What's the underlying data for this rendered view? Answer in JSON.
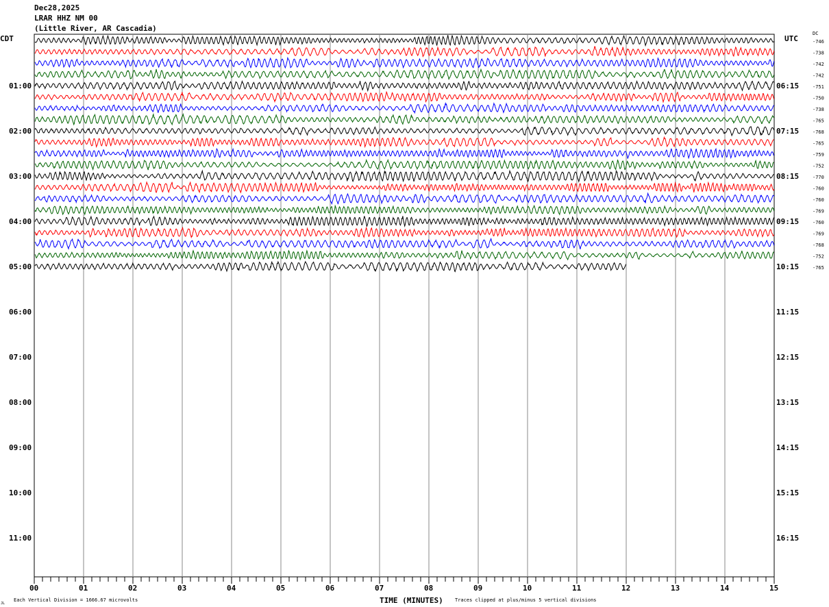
{
  "header": {
    "date": "Dec28,2025",
    "station": "LRAR HHZ NM 00",
    "location": "(Little River, AR Cascadia)"
  },
  "left_axis_title": "CDT",
  "right_axis_title": "UTC",
  "dc_title": "DC",
  "footer": {
    "scale_note": "Each Vertical Division = 1666.67 microvolts",
    "xlabel": "TIME (MINUTES)",
    "clip_note": "Traces clipped at plus/minus 5 vertical divisions",
    "corner_mark": "JL"
  },
  "chart_data": {
    "type": "line",
    "subtype": "helicorder",
    "xlabel": "TIME (MINUTES)",
    "xlim": [
      0,
      15
    ],
    "x_ticks": [
      "00",
      "01",
      "02",
      "03",
      "04",
      "05",
      "06",
      "07",
      "08",
      "09",
      "10",
      "11",
      "12",
      "13",
      "14",
      "15"
    ],
    "grid": "vertical every minute",
    "left_time_labels": [
      "01:00",
      "02:00",
      "03:00",
      "04:00",
      "05:00",
      "06:00",
      "07:00",
      "08:00",
      "09:00",
      "10:00",
      "11:00"
    ],
    "right_time_labels": [
      "06:15",
      "07:15",
      "08:15",
      "09:15",
      "10:15",
      "11:15",
      "12:15",
      "13:15",
      "14:15",
      "15:15",
      "16:15"
    ],
    "trace_colors": [
      "#000000",
      "#ff0000",
      "#0000ff",
      "#006400"
    ],
    "traces_dc": [
      -746,
      -738,
      -742,
      -742,
      -751,
      -750,
      -738,
      -765,
      -768,
      -765,
      -759,
      -752,
      -770,
      -760,
      -760,
      -769,
      -760,
      -769,
      -768,
      -752,
      -765
    ],
    "last_trace_end_minute": 12,
    "clip_divisions": 5,
    "microvolts_per_division": 1666.67
  }
}
